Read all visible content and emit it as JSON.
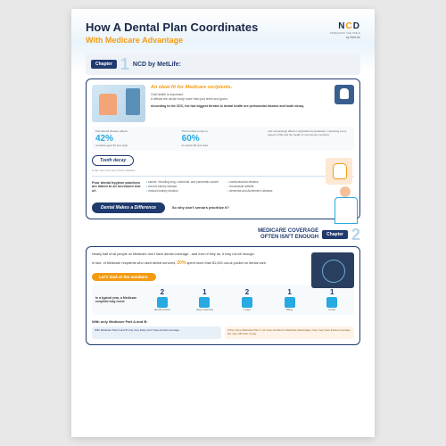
{
  "header": {
    "title": "How A Dental Plan Coordinates",
    "subtitle": "With Medicare Advantage",
    "logo": {
      "n": "N",
      "c": "C",
      "d": "D",
      "tag": "SPREADING THE SMILE",
      "by": "by MetLife"
    }
  },
  "ch1": {
    "chapter_label": "Chapter",
    "num": "1",
    "title": "NCD by MetLife:",
    "ideal": "An ideal fit for Medicare recipients.",
    "intro1": "Oral health is important.",
    "intro2": "It affects the whole body more than just teeth and gums.",
    "cdc": "According to the CDC, the two biggest threats to dental health are periodontal disease and tooth decay.",
    "stat1_label": "Periodontal disease affects",
    "stat1_pct": "42%",
    "stat1_sub": "of adults aged 30 and older",
    "stat2_label": "That number jumps to",
    "stat2_pct": "60%",
    "stat2_sub": "for adults 65 and older",
    "stat3": "and increasingly affects marginalized populations, impacting every aspect of life and the health of community members.",
    "tooth_decay": "Tooth decay",
    "td_sub": "is the most common chronic disease",
    "risk_label": "Poor dental hygiene practices are linked to an increased risk of:",
    "risks_a": [
      "cancer, including lung, colorectal, and pancreatic cancer",
      "chronic kidney disease",
      "reduced kidney function"
    ],
    "risks_b": [
      "cardiovascular disease",
      "rheumatoid arthritis",
      "dementia and Alzheimer's disease"
    ],
    "diff": "Dental Makes a Difference",
    "diff_q": "So why don't seniors prioritize it?"
  },
  "ch2": {
    "chapter_label": "Chapter",
    "num": "2",
    "title_a": "MEDICARE COVERAGE",
    "title_b": "OFTEN ISN'T ENOUGH",
    "p1": "Nearly half of all people on Medicare don't have dental coverage…and even if they do, it may not be enough.",
    "p2a": "In fact, of Medicare recipients who used dental services,",
    "p2_pct": "20%",
    "p2b": "spent more than $1,000 out-of-pocket on dental care.",
    "look": "Let's look at the numbers.",
    "needs_label": "In a typical year, a Medicare recipient may need:",
    "needs": [
      {
        "n": "2",
        "t": "dental exams"
      },
      {
        "n": "1",
        "t": "deep cleaning"
      },
      {
        "n": "2",
        "t": "x-rays"
      },
      {
        "n": "1",
        "t": "filling"
      },
      {
        "n": "1",
        "t": "crown"
      }
    ],
    "partab": "With only Medicare Part A and B:",
    "cmp1": "With Medicare Part A and B only, they likely won't have dental coverage.",
    "cmp2": "If they have Medicare Part C (or have enrolled in Medicare Advantage), they may have limited coverage, but may still have to pay."
  },
  "colors": {
    "navy": "#1f3a6e",
    "orange": "#f39c12",
    "cyan": "#27aae1",
    "bg": "#ffffff"
  }
}
